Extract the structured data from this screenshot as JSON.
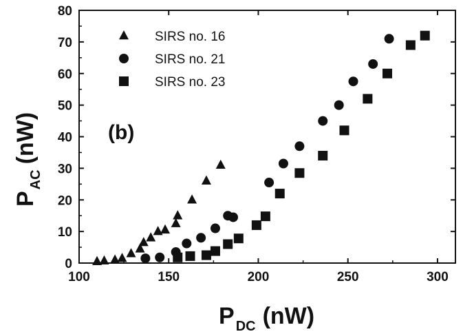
{
  "chart_data": {
    "type": "scatter",
    "panel_label": "(b)",
    "xlabel": {
      "main": "P",
      "sub": "DC",
      "unit": "(nW)"
    },
    "ylabel": {
      "main": "P",
      "sub": "AC",
      "unit": "(nW)"
    },
    "xlim": [
      100,
      310
    ],
    "ylim": [
      0,
      80
    ],
    "xticks": [
      100,
      150,
      200,
      250,
      300
    ],
    "yticks": [
      0,
      10,
      20,
      30,
      40,
      50,
      60,
      70,
      80
    ],
    "grid": false,
    "legend_position": "top-left",
    "series": [
      {
        "name": "SIRS no. 16",
        "marker": "triangle",
        "points": [
          [
            110,
            0.5
          ],
          [
            114,
            0.7
          ],
          [
            120,
            1.0
          ],
          [
            124,
            1.5
          ],
          [
            129,
            3.0
          ],
          [
            134,
            4.5
          ],
          [
            136,
            6.5
          ],
          [
            140,
            8.0
          ],
          [
            144,
            10.0
          ],
          [
            148,
            10.5
          ],
          [
            154,
            12.5
          ],
          [
            155,
            15.0
          ],
          [
            163,
            20.0
          ],
          [
            171,
            26.0
          ],
          [
            179,
            31.0
          ]
        ]
      },
      {
        "name": "SIRS no. 21",
        "marker": "circle",
        "points": [
          [
            137,
            1.5
          ],
          [
            145,
            1.8
          ],
          [
            154,
            3.5
          ],
          [
            160,
            6.2
          ],
          [
            168,
            8.0
          ],
          [
            176,
            11.0
          ],
          [
            183,
            15.0
          ],
          [
            186,
            14.5
          ],
          [
            206,
            25.5
          ],
          [
            214,
            31.5
          ],
          [
            223,
            37.0
          ],
          [
            236,
            45.0
          ],
          [
            245,
            50.0
          ],
          [
            253,
            57.5
          ],
          [
            264,
            63.0
          ],
          [
            273,
            71.0
          ]
        ]
      },
      {
        "name": "SIRS no. 23",
        "marker": "square",
        "points": [
          [
            155,
            1.8
          ],
          [
            162,
            2.2
          ],
          [
            171,
            2.5
          ],
          [
            176,
            3.8
          ],
          [
            183,
            6.0
          ],
          [
            189,
            7.8
          ],
          [
            199,
            12.0
          ],
          [
            204,
            14.8
          ],
          [
            212,
            22.0
          ],
          [
            223,
            28.5
          ],
          [
            236,
            34.0
          ],
          [
            248,
            42.0
          ],
          [
            261,
            52.0
          ],
          [
            272,
            60.0
          ],
          [
            285,
            69.0
          ],
          [
            293,
            72.0
          ]
        ]
      }
    ]
  }
}
